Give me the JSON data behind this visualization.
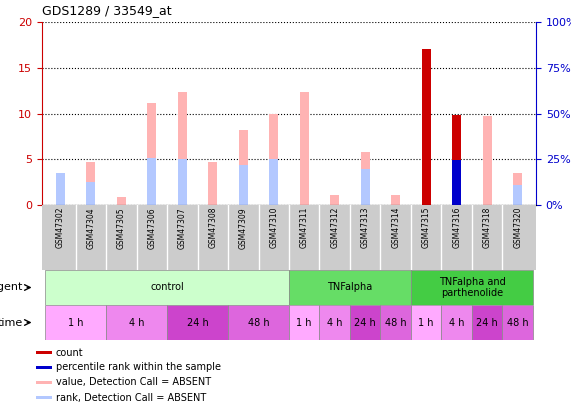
{
  "title": "GDS1289 / 33549_at",
  "samples": [
    "GSM47302",
    "GSM47304",
    "GSM47305",
    "GSM47306",
    "GSM47307",
    "GSM47308",
    "GSM47309",
    "GSM47310",
    "GSM47311",
    "GSM47312",
    "GSM47313",
    "GSM47314",
    "GSM47315",
    "GSM47316",
    "GSM47318",
    "GSM47320"
  ],
  "pink_bars": [
    3.0,
    4.7,
    0.9,
    11.2,
    12.4,
    4.7,
    8.2,
    9.9,
    12.3,
    1.1,
    5.8,
    1.1,
    0.0,
    9.7,
    9.7,
    3.5
  ],
  "light_blue_bars": [
    3.5,
    2.5,
    0.0,
    5.1,
    5.0,
    0.0,
    4.4,
    5.0,
    0.0,
    0.0,
    3.9,
    0.0,
    6.1,
    4.9,
    0.0,
    2.2
  ],
  "red_bars": [
    0.0,
    0.0,
    0.0,
    0.0,
    0.0,
    0.0,
    0.0,
    0.0,
    0.0,
    0.0,
    0.0,
    0.0,
    17.0,
    9.8,
    0.0,
    0.0
  ],
  "blue_bars": [
    0.0,
    0.0,
    0.0,
    0.0,
    0.0,
    0.0,
    0.0,
    0.0,
    0.0,
    0.0,
    0.0,
    0.0,
    0.0,
    4.9,
    0.0,
    0.0
  ],
  "pink_color": "#ffb3b3",
  "light_blue_color": "#b3c8ff",
  "red_color": "#cc0000",
  "blue_color": "#0000cc",
  "ylim_left": [
    0,
    20
  ],
  "ylim_right": [
    0,
    100
  ],
  "yticks_left": [
    0,
    5,
    10,
    15,
    20
  ],
  "yticks_right": [
    0,
    25,
    50,
    75,
    100
  ],
  "ytick_labels_right": [
    "0%",
    "25%",
    "50%",
    "75%",
    "100%"
  ],
  "agent_groups": [
    {
      "label": "control",
      "start": 0,
      "end": 7,
      "color": "#ccffcc"
    },
    {
      "label": "TNFalpha",
      "start": 8,
      "end": 11,
      "color": "#66dd66"
    },
    {
      "label": "TNFalpha and\nparthenolide",
      "start": 12,
      "end": 15,
      "color": "#44cc44"
    }
  ],
  "time_groups": [
    {
      "label": "1 h",
      "start": 0,
      "end": 1,
      "color": "#ffaaff"
    },
    {
      "label": "4 h",
      "start": 2,
      "end": 3,
      "color": "#ee88ee"
    },
    {
      "label": "24 h",
      "start": 4,
      "end": 5,
      "color": "#cc44cc"
    },
    {
      "label": "48 h",
      "start": 6,
      "end": 7,
      "color": "#dd66dd"
    },
    {
      "label": "1 h",
      "start": 8,
      "end": 8,
      "color": "#ffaaff"
    },
    {
      "label": "4 h",
      "start": 9,
      "end": 9,
      "color": "#ee88ee"
    },
    {
      "label": "24 h",
      "start": 10,
      "end": 10,
      "color": "#cc44cc"
    },
    {
      "label": "48 h",
      "start": 11,
      "end": 11,
      "color": "#dd66dd"
    },
    {
      "label": "1 h",
      "start": 12,
      "end": 12,
      "color": "#ffaaff"
    },
    {
      "label": "4 h",
      "start": 13,
      "end": 13,
      "color": "#ee88ee"
    },
    {
      "label": "24 h",
      "start": 14,
      "end": 14,
      "color": "#cc44cc"
    },
    {
      "label": "48 h",
      "start": 15,
      "end": 15,
      "color": "#dd66dd"
    }
  ],
  "legend_items": [
    {
      "label": "count",
      "color": "#cc0000"
    },
    {
      "label": "percentile rank within the sample",
      "color": "#0000cc"
    },
    {
      "label": "value, Detection Call = ABSENT",
      "color": "#ffb3b3"
    },
    {
      "label": "rank, Detection Call = ABSENT",
      "color": "#b3c8ff"
    }
  ],
  "bar_width": 0.3,
  "left_axis_color": "#cc0000",
  "right_axis_color": "#0000cc",
  "sample_bg_color": "#cccccc",
  "sample_divider_color": "#ffffff"
}
